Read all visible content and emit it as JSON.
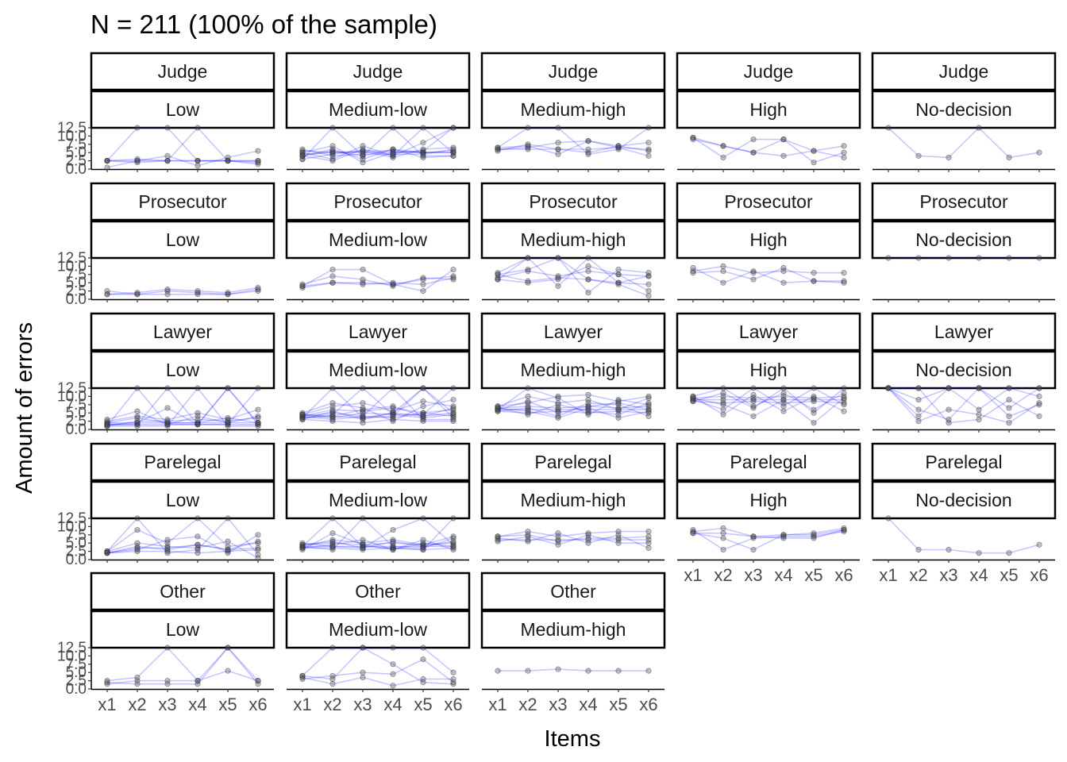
{
  "chart_data": {
    "type": "line",
    "title": "N = 211 (100% of the sample)",
    "xlabel": "Items",
    "ylabel": "Amount of errors",
    "categories": [
      "x1",
      "x2",
      "x3",
      "x4",
      "x5",
      "x6"
    ],
    "y_ticks": [
      "0.0",
      "2.5",
      "5.0",
      "7.5",
      "10.0",
      "12.5"
    ],
    "ylim": [
      0,
      12.5
    ],
    "grid": false,
    "line_color": "#0000ff",
    "point_color": "#555555",
    "row_labels": [
      "Judge",
      "Prosecutor",
      "Lawyer",
      "Parelegal",
      "Other"
    ],
    "col_labels": [
      "Low",
      "Medium-low",
      "Medium-high",
      "High",
      "No-decision"
    ],
    "panels": [
      {
        "row": "Judge",
        "col": "Low",
        "series": [
          [
            2.5,
            2.5,
            2.5,
            2.5,
            2.5,
            2.5
          ],
          [
            2.5,
            12.5,
            12.5,
            2.5,
            2.5,
            2.5
          ],
          [
            2.5,
            2.0,
            2.5,
            12.5,
            2.5,
            1.5
          ],
          [
            0.5,
            2.5,
            4.0,
            1.0,
            3.5,
            5.5
          ],
          [
            2.5,
            3.0,
            2.5,
            2.5,
            2.5,
            2.0
          ]
        ]
      },
      {
        "row": "Judge",
        "col": "Medium-low",
        "series": [
          [
            4.5,
            5.0,
            5.0,
            5.0,
            5.0,
            5.0
          ],
          [
            3.0,
            12.5,
            4.0,
            6.0,
            5.0,
            5.5
          ],
          [
            5.0,
            3.0,
            7.0,
            4.0,
            8.0,
            12.5
          ],
          [
            4.0,
            5.5,
            4.0,
            12.5,
            4.0,
            4.0
          ],
          [
            5.5,
            5.0,
            5.5,
            5.5,
            5.0,
            5.0
          ],
          [
            4.0,
            6.0,
            3.0,
            6.0,
            3.5,
            4.0
          ],
          [
            3.0,
            4.5,
            5.5,
            3.5,
            6.0,
            6.5
          ],
          [
            5.0,
            7.0,
            2.0,
            5.0,
            5.5,
            12.5
          ],
          [
            4.0,
            2.5,
            6.0,
            4.0,
            12.5,
            5.0
          ],
          [
            6.0,
            4.0,
            4.5,
            4.5,
            4.5,
            6.0
          ]
        ]
      },
      {
        "row": "Judge",
        "col": "Medium-high",
        "series": [
          [
            6.0,
            6.0,
            6.0,
            6.0,
            6.5,
            6.0
          ],
          [
            6.5,
            12.5,
            12.5,
            4.5,
            6.0,
            12.5
          ],
          [
            6.0,
            6.5,
            8.0,
            8.5,
            7.0,
            8.0
          ],
          [
            6.5,
            7.0,
            4.5,
            8.5,
            6.5,
            4.0
          ],
          [
            5.5,
            7.5,
            6.0,
            5.0,
            7.0,
            5.5
          ]
        ]
      },
      {
        "row": "Judge",
        "col": "High",
        "series": [
          [
            9.5,
            7.0,
            5.0,
            9.0,
            5.5,
            7.0
          ],
          [
            9.5,
            3.5,
            9.0,
            9.0,
            2.0,
            5.0
          ],
          [
            9.0,
            7.0,
            5.0,
            4.0,
            5.5,
            3.5
          ]
        ]
      },
      {
        "row": "Judge",
        "col": "No-decision",
        "series": [
          [
            12.5,
            4.0,
            3.5,
            12.5,
            3.5,
            5.0
          ]
        ]
      },
      {
        "row": "Prosecutor",
        "col": "Low",
        "series": [
          [
            1.5,
            1.5,
            1.5,
            1.5,
            1.5,
            2.5
          ],
          [
            2.5,
            1.5,
            2.5,
            2.0,
            1.5,
            3.0
          ],
          [
            1.5,
            2.0,
            3.0,
            2.5,
            2.0,
            3.5
          ]
        ]
      },
      {
        "row": "Prosecutor",
        "col": "Medium-low",
        "series": [
          [
            3.5,
            5.0,
            5.0,
            4.5,
            6.0,
            7.0
          ],
          [
            4.5,
            7.0,
            6.0,
            4.0,
            6.5,
            6.0
          ],
          [
            4.0,
            9.0,
            9.0,
            4.5,
            2.5,
            9.0
          ],
          [
            4.0,
            5.0,
            4.5,
            5.0,
            4.5,
            6.5
          ]
        ]
      },
      {
        "row": "Prosecutor",
        "col": "Medium-high",
        "series": [
          [
            6.0,
            12.5,
            4.0,
            12.5,
            5.0,
            7.0
          ],
          [
            7.5,
            9.0,
            12.5,
            6.0,
            5.0,
            4.5
          ],
          [
            6.0,
            5.0,
            6.0,
            10.0,
            7.5,
            2.5
          ],
          [
            8.0,
            12.5,
            12.5,
            2.0,
            9.0,
            8.0
          ],
          [
            6.5,
            8.5,
            7.0,
            8.5,
            7.5,
            7.0
          ],
          [
            7.5,
            5.5,
            6.5,
            6.0,
            4.5,
            1.0
          ]
        ]
      },
      {
        "row": "Prosecutor",
        "col": "High",
        "series": [
          [
            8.5,
            10.0,
            8.0,
            8.5,
            8.0,
            8.0
          ],
          [
            9.5,
            5.0,
            8.5,
            5.0,
            5.5,
            5.5
          ],
          [
            8.0,
            8.5,
            6.0,
            9.5,
            5.5,
            5.0
          ]
        ]
      },
      {
        "row": "Prosecutor",
        "col": "No-decision",
        "series": [
          [
            12.5,
            12.5,
            12.5,
            12.5,
            12.5,
            12.5
          ]
        ]
      },
      {
        "row": "Lawyer",
        "col": "Low",
        "series": [
          [
            1.5,
            1.5,
            1.5,
            1.5,
            1.5,
            1.5
          ],
          [
            2.0,
            2.0,
            2.0,
            2.0,
            2.0,
            2.0
          ],
          [
            1.0,
            12.5,
            1.5,
            1.5,
            12.5,
            1.5
          ],
          [
            1.5,
            1.5,
            12.5,
            1.5,
            1.5,
            12.5
          ],
          [
            2.5,
            4.0,
            3.0,
            5.0,
            3.0,
            6.0
          ],
          [
            1.0,
            1.0,
            1.0,
            12.5,
            1.0,
            1.0
          ],
          [
            2.0,
            3.5,
            2.0,
            2.0,
            3.5,
            2.0
          ],
          [
            1.5,
            2.0,
            6.5,
            1.5,
            12.5,
            2.0
          ],
          [
            3.0,
            5.5,
            1.5,
            4.0,
            2.0,
            4.0
          ],
          [
            1.0,
            2.5,
            2.5,
            3.0,
            2.5,
            3.5
          ]
        ]
      },
      {
        "row": "Lawyer",
        "col": "Medium-low",
        "series": [
          [
            3.5,
            4.0,
            3.5,
            5.0,
            4.0,
            5.0
          ],
          [
            4.0,
            5.0,
            4.0,
            3.5,
            5.0,
            4.0
          ],
          [
            4.5,
            3.5,
            5.0,
            4.5,
            3.5,
            4.5
          ],
          [
            3.5,
            12.5,
            3.5,
            4.0,
            12.5,
            3.5
          ],
          [
            4.0,
            6.0,
            5.5,
            6.5,
            5.0,
            6.0
          ],
          [
            3.0,
            2.5,
            2.0,
            3.0,
            2.5,
            2.5
          ],
          [
            4.5,
            7.0,
            8.0,
            5.5,
            8.5,
            7.0
          ],
          [
            3.5,
            4.5,
            12.5,
            4.5,
            4.5,
            12.5
          ],
          [
            4.0,
            3.0,
            4.0,
            12.5,
            3.0,
            3.0
          ],
          [
            5.0,
            8.0,
            6.5,
            2.5,
            7.0,
            9.0
          ],
          [
            3.0,
            5.5,
            3.0,
            5.0,
            12.5,
            5.0
          ],
          [
            4.5,
            4.0,
            6.0,
            7.0,
            4.0,
            6.5
          ]
        ]
      },
      {
        "row": "Lawyer",
        "col": "Medium-high",
        "series": [
          [
            6.0,
            6.0,
            6.0,
            6.0,
            6.0,
            6.0
          ],
          [
            6.5,
            7.0,
            6.5,
            7.0,
            6.5,
            7.0
          ],
          [
            5.5,
            5.0,
            5.5,
            5.0,
            5.5,
            5.0
          ],
          [
            6.0,
            8.5,
            5.0,
            7.0,
            8.0,
            6.0
          ],
          [
            6.5,
            4.5,
            7.5,
            5.5,
            4.5,
            8.0
          ],
          [
            7.0,
            10.0,
            8.0,
            9.0,
            6.0,
            9.5
          ],
          [
            5.5,
            6.5,
            4.0,
            8.0,
            7.5,
            4.0
          ],
          [
            6.0,
            12.5,
            9.5,
            4.5,
            9.0,
            7.5
          ],
          [
            6.5,
            5.5,
            3.5,
            6.5,
            3.5,
            5.5
          ],
          [
            7.0,
            8.0,
            10.0,
            10.5,
            8.5,
            10.0
          ]
        ]
      },
      {
        "row": "Lawyer",
        "col": "High",
        "series": [
          [
            9.0,
            9.0,
            9.0,
            9.0,
            9.0,
            9.0
          ],
          [
            9.5,
            10.0,
            9.5,
            10.0,
            9.5,
            10.0
          ],
          [
            8.5,
            8.0,
            8.5,
            8.0,
            8.5,
            8.0
          ],
          [
            10.0,
            12.5,
            7.0,
            11.0,
            6.0,
            11.0
          ],
          [
            9.0,
            6.0,
            12.5,
            7.0,
            12.5,
            7.5
          ],
          [
            8.5,
            11.0,
            6.5,
            12.5,
            5.0,
            12.5
          ],
          [
            10.0,
            4.5,
            10.5,
            5.5,
            10.0,
            5.5
          ],
          [
            9.5,
            7.5,
            4.0,
            9.0,
            2.0,
            9.5
          ]
        ]
      },
      {
        "row": "Lawyer",
        "col": "No-decision",
        "series": [
          [
            12.5,
            12.5,
            12.5,
            12.5,
            12.5,
            12.5
          ],
          [
            12.5,
            9.0,
            12.5,
            6.0,
            12.5,
            10.0
          ],
          [
            12.5,
            6.0,
            3.0,
            12.5,
            4.0,
            7.5
          ],
          [
            12.5,
            12.5,
            2.0,
            3.0,
            9.0,
            4.0
          ],
          [
            12.5,
            4.0,
            12.5,
            12.5,
            6.5,
            12.5
          ],
          [
            12.5,
            2.5,
            6.0,
            4.5,
            2.0,
            8.0
          ]
        ]
      },
      {
        "row": "Parelegal",
        "col": "Low",
        "series": [
          [
            2.0,
            2.5,
            2.5,
            2.0,
            2.5,
            3.0
          ],
          [
            2.5,
            9.0,
            5.0,
            12.5,
            4.0,
            5.0
          ],
          [
            2.0,
            4.0,
            3.0,
            4.5,
            3.0,
            3.5
          ],
          [
            2.5,
            12.5,
            2.0,
            3.0,
            12.5,
            1.5
          ],
          [
            2.0,
            3.0,
            6.0,
            7.0,
            2.0,
            7.5
          ],
          [
            2.5,
            5.0,
            4.0,
            3.5,
            5.5,
            0.5
          ],
          [
            2.0,
            3.5,
            3.5,
            4.5,
            3.0,
            5.5
          ]
        ]
      },
      {
        "row": "Parelegal",
        "col": "Medium-low",
        "series": [
          [
            4.0,
            4.0,
            4.0,
            4.0,
            4.0,
            4.0
          ],
          [
            4.5,
            5.0,
            4.5,
            5.0,
            4.5,
            5.0
          ],
          [
            3.5,
            3.5,
            3.0,
            3.5,
            3.0,
            3.5
          ],
          [
            4.0,
            12.5,
            4.0,
            3.5,
            3.0,
            12.5
          ],
          [
            4.0,
            3.0,
            12.5,
            4.0,
            3.5,
            6.5
          ],
          [
            4.5,
            5.5,
            3.5,
            9.0,
            12.5,
            4.5
          ],
          [
            3.5,
            4.5,
            6.0,
            3.0,
            6.0,
            3.0
          ],
          [
            4.0,
            6.0,
            5.0,
            6.0,
            4.5,
            7.0
          ],
          [
            5.0,
            4.0,
            3.5,
            5.5,
            4.0,
            5.5
          ],
          [
            3.0,
            8.0,
            4.5,
            3.0,
            5.0,
            4.0
          ]
        ]
      },
      {
        "row": "Parelegal",
        "col": "Medium-high",
        "series": [
          [
            6.0,
            6.0,
            6.0,
            6.0,
            6.0,
            6.0
          ],
          [
            7.0,
            8.5,
            7.0,
            8.0,
            8.5,
            8.5
          ],
          [
            5.5,
            7.0,
            4.5,
            7.5,
            5.0,
            5.0
          ],
          [
            6.5,
            5.5,
            8.0,
            5.0,
            7.5,
            3.5
          ],
          [
            7.0,
            7.5,
            5.5,
            6.5,
            6.5,
            7.0
          ]
        ]
      },
      {
        "row": "Parelegal",
        "col": "High",
        "series": [
          [
            8.5,
            9.5,
            7.0,
            7.5,
            7.5,
            9.0
          ],
          [
            9.0,
            3.0,
            6.5,
            7.0,
            7.0,
            8.5
          ],
          [
            8.0,
            6.5,
            3.0,
            7.5,
            8.0,
            9.5
          ],
          [
            8.0,
            8.0,
            7.0,
            6.5,
            6.5,
            9.0
          ]
        ]
      },
      {
        "row": "Parelegal",
        "col": "No-decision",
        "series": [
          [
            12.5,
            3.0,
            3.0,
            2.0,
            2.0,
            4.5
          ]
        ]
      },
      {
        "row": "Other",
        "col": "Low",
        "series": [
          [
            1.5,
            2.5,
            2.5,
            2.5,
            12.5,
            2.5
          ],
          [
            2.5,
            3.5,
            12.5,
            2.5,
            5.5,
            2.5
          ],
          [
            2.0,
            1.5,
            1.5,
            1.5,
            12.5,
            1.5
          ]
        ]
      },
      {
        "row": "Other",
        "col": "Medium-low",
        "series": [
          [
            4.0,
            12.5,
            12.5,
            12.5,
            12.5,
            5.0
          ],
          [
            3.5,
            1.5,
            3.5,
            1.0,
            3.0,
            3.0
          ],
          [
            4.0,
            3.0,
            12.5,
            7.5,
            2.0,
            1.5
          ],
          [
            3.0,
            4.0,
            5.0,
            4.5,
            9.0,
            2.0
          ]
        ]
      },
      {
        "row": "Other",
        "col": "Medium-high",
        "series": [
          [
            5.5,
            5.5,
            6.0,
            5.5,
            5.5,
            5.5
          ]
        ]
      }
    ]
  }
}
